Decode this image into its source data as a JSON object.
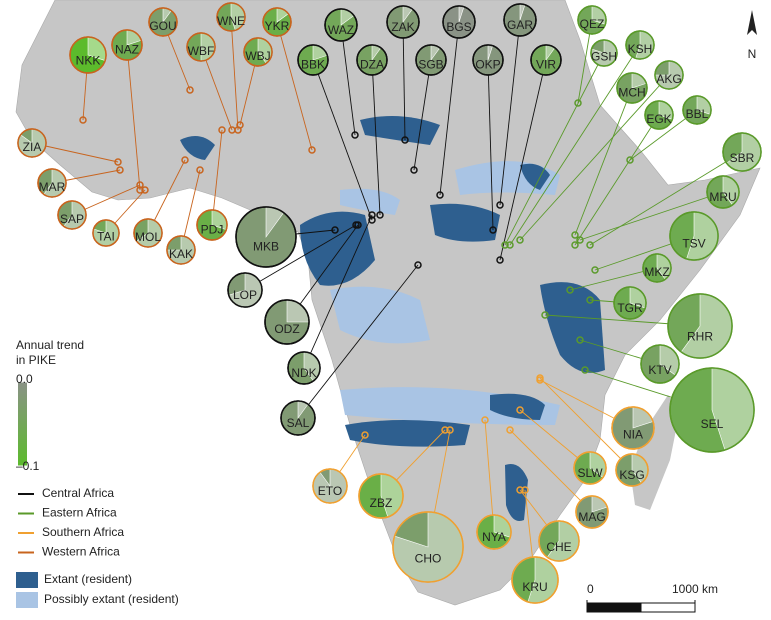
{
  "legend": {
    "title_line1": "Annual trend",
    "title_line2": "in PIKE",
    "scale_ticks": [
      {
        "value": 0,
        "label": "0.0"
      },
      {
        "value": -0.1,
        "label": "–0.1"
      }
    ],
    "regions": [
      {
        "name": "Central Africa",
        "color": "#111111"
      },
      {
        "name": "Eastern Africa",
        "color": "#5a9a2a"
      },
      {
        "name": "Southern Africa",
        "color": "#f0a030"
      },
      {
        "name": "Western Africa",
        "color": "#c8641e"
      }
    ],
    "ranges": [
      {
        "name": "Extant (resident)",
        "color": "#2e5f8f"
      },
      {
        "name": "Possibly extant (resident)",
        "color": "#a9c4e4"
      }
    ]
  },
  "scale_bar": {
    "ticks": [
      {
        "value": 0,
        "label": "0"
      },
      {
        "value": 1000,
        "label": "1000 km"
      }
    ]
  },
  "north": "N",
  "sites": [
    {
      "label": "NKK",
      "region": "Western Africa",
      "trend": -0.1,
      "share": 0.3
    },
    {
      "label": "NAZ",
      "region": "Western Africa",
      "trend": -0.06,
      "share": 0.2
    },
    {
      "label": "GOU",
      "region": "Western Africa",
      "trend": -0.03,
      "share": 0.1
    },
    {
      "label": "WNE",
      "region": "Western Africa",
      "trend": -0.05,
      "share": 0.45
    },
    {
      "label": "WBF",
      "region": "Western Africa",
      "trend": -0.05,
      "share": 0.5
    },
    {
      "label": "YKR",
      "region": "Western Africa",
      "trend": -0.07,
      "share": 0.15
    },
    {
      "label": "WBJ",
      "region": "Western Africa",
      "trend": -0.06,
      "share": 0.4
    },
    {
      "label": "ZIA",
      "region": "Western Africa",
      "trend": -0.03,
      "share": 0.85
    },
    {
      "label": "MAR",
      "region": "Western Africa",
      "trend": -0.03,
      "share": 0.6
    },
    {
      "label": "SAP",
      "region": "Western Africa",
      "trend": -0.03,
      "share": 0.6
    },
    {
      "label": "TAI",
      "region": "Western Africa",
      "trend": -0.05,
      "share": 0.8
    },
    {
      "label": "MOL",
      "region": "Western Africa",
      "trend": -0.04,
      "share": 0.65
    },
    {
      "label": "KAK",
      "region": "Western Africa",
      "trend": -0.03,
      "share": 0.75
    },
    {
      "label": "PDJ",
      "region": "Western Africa",
      "trend": -0.07,
      "share": 0.3
    },
    {
      "label": "WAZ",
      "region": "Central Africa",
      "trend": -0.05,
      "share": 0.15
    },
    {
      "label": "ZAK",
      "region": "Central Africa",
      "trend": -0.02,
      "share": 0.1
    },
    {
      "label": "BGS",
      "region": "Central Africa",
      "trend": 0,
      "share": 0.05
    },
    {
      "label": "GAR",
      "region": "Central Africa",
      "trend": -0.01,
      "share": 0.05
    },
    {
      "label": "BBK",
      "region": "Central Africa",
      "trend": -0.06,
      "share": 0.2
    },
    {
      "label": "DZA",
      "region": "Central Africa",
      "trend": -0.04,
      "share": 0.1
    },
    {
      "label": "SGB",
      "region": "Central Africa",
      "trend": -0.02,
      "share": 0.1
    },
    {
      "label": "OKP",
      "region": "Central Africa",
      "trend": -0.01,
      "share": 0.05
    },
    {
      "label": "VIR",
      "region": "Central Africa",
      "trend": -0.05,
      "share": 0.1
    },
    {
      "label": "MKB",
      "region": "Central Africa",
      "trend": -0.02,
      "share": 0.1
    },
    {
      "label": "LOP",
      "region": "Central Africa",
      "trend": -0.02,
      "share": 0.7
    },
    {
      "label": "ODZ",
      "region": "Central Africa",
      "trend": -0.02,
      "share": 0.25
    },
    {
      "label": "NDK",
      "region": "Central Africa",
      "trend": -0.03,
      "share": 0.4
    },
    {
      "label": "SAL",
      "region": "Central Africa",
      "trend": -0.02,
      "share": 0.1
    },
    {
      "label": "QEZ",
      "region": "Eastern Africa",
      "trend": -0.05,
      "share": 0.3
    },
    {
      "label": "GSH",
      "region": "Eastern Africa",
      "trend": -0.03,
      "share": 0.8
    },
    {
      "label": "KSH",
      "region": "Eastern Africa",
      "trend": -0.05,
      "share": 0.55
    },
    {
      "label": "MCH",
      "region": "Eastern Africa",
      "trend": -0.04,
      "share": 0.2
    },
    {
      "label": "AKG",
      "region": "Eastern Africa",
      "trend": -0.03,
      "share": 0.75
    },
    {
      "label": "EGK",
      "region": "Eastern Africa",
      "trend": -0.06,
      "share": 0.3
    },
    {
      "label": "BBL",
      "region": "Eastern Africa",
      "trend": -0.05,
      "share": 0.3
    },
    {
      "label": "SBR",
      "region": "Eastern Africa",
      "trend": -0.05,
      "share": 0.65
    },
    {
      "label": "MRU",
      "region": "Eastern Africa",
      "trend": -0.05,
      "share": 0.4
    },
    {
      "label": "TSV",
      "region": "Eastern Africa",
      "trend": -0.06,
      "share": 0.55
    },
    {
      "label": "MKZ",
      "region": "Eastern Africa",
      "trend": -0.06,
      "share": 0.4
    },
    {
      "label": "TGR",
      "region": "Eastern Africa",
      "trend": -0.06,
      "share": 0.3
    },
    {
      "label": "RHR",
      "region": "Eastern Africa",
      "trend": -0.05,
      "share": 0.6
    },
    {
      "label": "KTV",
      "region": "Eastern Africa",
      "trend": -0.04,
      "share": 0.35
    },
    {
      "label": "SEL",
      "region": "Eastern Africa",
      "trend": -0.06,
      "share": 0.45
    },
    {
      "label": "NIA",
      "region": "Southern Africa",
      "trend": -0.02,
      "share": 0.2
    },
    {
      "label": "KSG",
      "region": "Southern Africa",
      "trend": -0.03,
      "share": 0.4
    },
    {
      "label": "SLW",
      "region": "Southern Africa",
      "trend": -0.06,
      "share": 0.35
    },
    {
      "label": "MAG",
      "region": "Southern Africa",
      "trend": -0.02,
      "share": 0.2
    },
    {
      "label": "CHE",
      "region": "Southern Africa",
      "trend": -0.05,
      "share": 0.6
    },
    {
      "label": "NYA",
      "region": "Southern Africa",
      "trend": -0.07,
      "share": 0.3
    },
    {
      "label": "KRU",
      "region": "Southern Africa",
      "trend": -0.06,
      "share": 0.55
    },
    {
      "label": "CHO",
      "region": "Southern Africa",
      "trend": -0.03,
      "share": 0.8
    },
    {
      "label": "ZBZ",
      "region": "Southern Africa",
      "trend": -0.07,
      "share": 0.45
    },
    {
      "label": "ETO",
      "region": "Southern Africa",
      "trend": -0.02,
      "share": 0.9
    }
  ]
}
